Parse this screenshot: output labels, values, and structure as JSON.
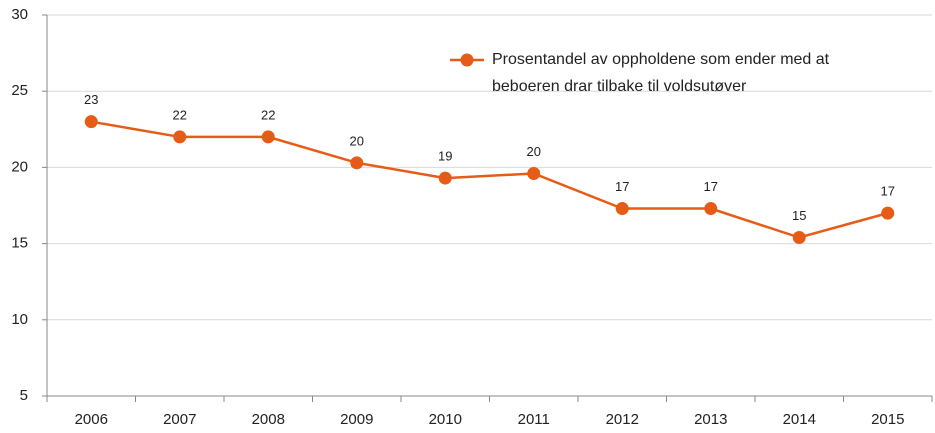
{
  "chart_data": {
    "type": "line",
    "categories": [
      "2006",
      "2007",
      "2008",
      "2009",
      "2010",
      "2011",
      "2012",
      "2013",
      "2014",
      "2015"
    ],
    "series": [
      {
        "name": "Prosentandel av oppholdene som ender med at beboeren drar tilbake til voldsutøver",
        "color": "#e65c17",
        "values": [
          23,
          22,
          22,
          20.3,
          19.3,
          19.6,
          17.3,
          17.3,
          15.4,
          17.0
        ],
        "value_labels": [
          "23",
          "22",
          "22",
          "20",
          "19",
          "20",
          "17",
          "17",
          "15",
          "17"
        ]
      }
    ],
    "ylim": [
      5,
      30
    ],
    "yticks": [
      5,
      10,
      15,
      20,
      25,
      30
    ],
    "grid": true,
    "legend": "top-right"
  }
}
